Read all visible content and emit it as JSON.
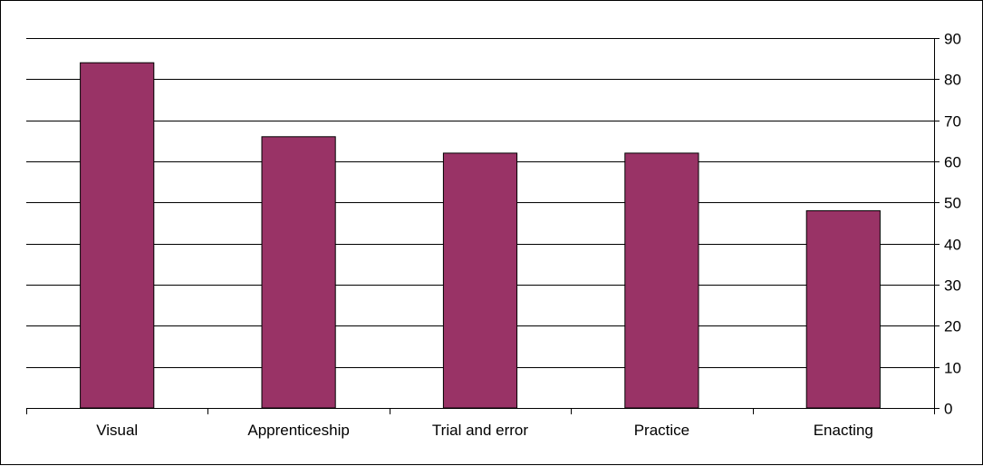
{
  "chart_data": {
    "type": "bar",
    "categories": [
      "Visual",
      "Apprenticeship",
      "Trial and error",
      "Practice",
      "Enacting"
    ],
    "values": [
      84,
      66,
      62,
      62,
      48
    ],
    "ylim": [
      0,
      90
    ],
    "yticks": [
      0,
      10,
      20,
      30,
      40,
      50,
      60,
      70,
      80,
      90
    ],
    "y_axis_side": "right",
    "grid": true,
    "legend": "none",
    "colors": {
      "bar": "#993366",
      "bar_outline": "#000000",
      "grid": "#000000"
    }
  }
}
